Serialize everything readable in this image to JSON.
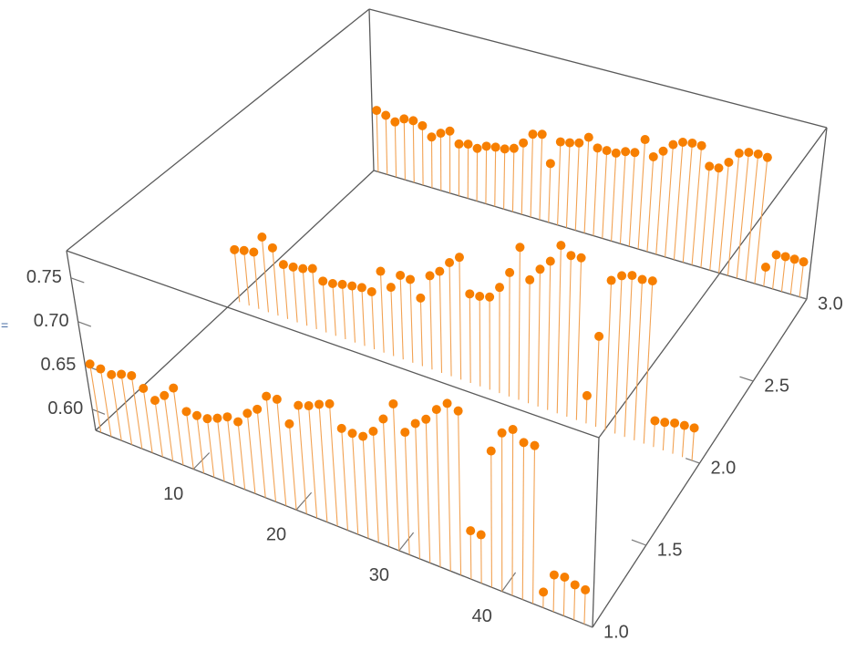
{
  "output_label": "=",
  "chart_data": {
    "type": "stem3d",
    "x": [
      1,
      2,
      3,
      4,
      5,
      6,
      7,
      8,
      9,
      10,
      11,
      12,
      13,
      14,
      15,
      16,
      17,
      18,
      19,
      20,
      21,
      22,
      23,
      24,
      25,
      26,
      27,
      28,
      29,
      30,
      31,
      32,
      33,
      34,
      35,
      36,
      37,
      38,
      39,
      40,
      41,
      42,
      43,
      44,
      45,
      46,
      47,
      48
    ],
    "xlim": [
      0.5,
      48.8
    ],
    "xticks": [
      10,
      20,
      30,
      40
    ],
    "ylim": [
      1,
      3
    ],
    "yticks": [
      {
        "value": 1,
        "label": "1.0"
      },
      1.5,
      {
        "value": 2,
        "label": "2.0"
      },
      2.5,
      {
        "value": 3,
        "label": "3.0"
      }
    ],
    "zlim": [
      0.576,
      0.781
    ],
    "zticks": [
      {
        "value": 0.6,
        "label": "0.60"
      },
      0.65,
      {
        "value": 0.7,
        "label": "0.70"
      },
      0.75
    ],
    "color": "#f77f00",
    "stem_color": "#f2a253",
    "series": [
      {
        "y": 3,
        "values": [
          0.654,
          0.651,
          0.646,
          0.653,
          0.654,
          0.651,
          0.64,
          0.648,
          0.654,
          0.641,
          0.644,
          0.642,
          0.648,
          0.65,
          0.651,
          0.655,
          0.665,
          0.679,
          0.682,
          0.649,
          0.679,
          0.681,
          0.684,
          0.694,
          0.684,
          0.684,
          0.684,
          0.689,
          0.691,
          0.71,
          0.692,
          0.702,
          0.713,
          0.719,
          0.721,
          0.721,
          0.699,
          0.7,
          0.71,
          0.724,
          0.728,
          0.729,
          0.728,
          0.599,
          0.617,
          0.618,
          0.618,
          0.618
        ]
      },
      {
        "y": 2,
        "values": [
          0.639,
          0.642,
          0.644,
          0.666,
          0.657,
          0.641,
          0.642,
          0.644,
          0.648,
          0.637,
          0.638,
          0.641,
          0.643,
          0.645,
          0.644,
          0.672,
          0.657,
          0.675,
          0.674,
          0.656,
          0.686,
          0.695,
          0.709,
          0.719,
          0.68,
          0.681,
          0.684,
          0.699,
          0.72,
          0.753,
          0.719,
          0.735,
          0.748,
          0.77,
          0.762,
          0.763,
          0.608,
          0.68,
          0.748,
          0.757,
          0.761,
          0.76,
          0.762,
          0.606,
          0.608,
          0.611,
          0.612,
          0.613
        ]
      },
      {
        "y": 1,
        "values": [
          0.654,
          0.653,
          0.651,
          0.656,
          0.659,
          0.649,
          0.64,
          0.65,
          0.663,
          0.641,
          0.641,
          0.642,
          0.647,
          0.653,
          0.652,
          0.666,
          0.675,
          0.694,
          0.695,
          0.672,
          0.697,
          0.701,
          0.707,
          0.712,
          0.689,
          0.688,
          0.689,
          0.699,
          0.717,
          0.738,
          0.711,
          0.725,
          0.734,
          0.749,
          0.76,
          0.756,
          0.629,
          0.629,
          0.725,
          0.749,
          0.757,
          0.747,
          0.748,
          0.593,
          0.616,
          0.618,
          0.614,
          0.613
        ]
      }
    ]
  }
}
